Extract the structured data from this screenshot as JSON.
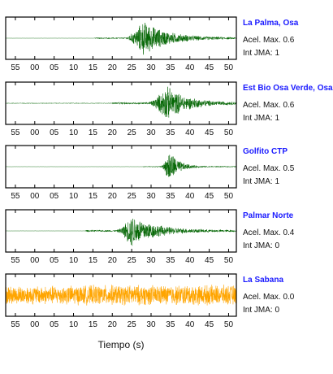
{
  "chart_data": {
    "type": "line",
    "xlabel": "Tiempo (s)",
    "x_ticks": [
      "55",
      "00",
      "05",
      "10",
      "15",
      "20",
      "25",
      "30",
      "35",
      "40",
      "45",
      "50"
    ],
    "x_tick_seconds": [
      -5,
      0,
      5,
      10,
      15,
      20,
      25,
      30,
      35,
      40,
      45,
      50
    ],
    "xlim": [
      -7.5,
      52
    ],
    "grid": false,
    "legend": "none",
    "panels": [
      {
        "station": "La Palma, Osa",
        "acel_label": "Acel. Max. 0.6",
        "jma_label": "Int JMA: 1",
        "color": "#006400",
        "noise_start": 15.5,
        "onset": 23,
        "peak": 28,
        "peak_amplitude": 0.95,
        "decay": 6,
        "noise_level": 0.04,
        "pre_noise": 0.005
      },
      {
        "station": "Est Bio Osa Verde, Osa",
        "acel_label": "Acel. Max. 0.6",
        "jma_label": "Int JMA: 1",
        "color": "#006400",
        "noise_start": 20,
        "onset": 29,
        "peak": 34,
        "peak_amplitude": 0.95,
        "decay": 5,
        "noise_level": 0.06,
        "pre_noise": 0.02
      },
      {
        "station": "Golfito CTP",
        "acel_label": "Acel. Max. 0.5",
        "jma_label": "Int JMA: 1",
        "color": "#006400",
        "noise_start": 28,
        "onset": 32.5,
        "peak": 34.8,
        "peak_amplitude": 0.95,
        "decay": 2.2,
        "noise_level": 0.03,
        "pre_noise": 0.005
      },
      {
        "station": "Palmar Norte",
        "acel_label": "Acel. Max. 0.4",
        "jma_label": "Int JMA: 0",
        "color": "#006400",
        "noise_start": 13,
        "onset": 21,
        "peak": 25,
        "peak_amplitude": 0.9,
        "decay": 6,
        "noise_level": 0.05,
        "pre_noise": 0.005
      },
      {
        "station": "La Sabana",
        "acel_label": "Acel. Max. 0.0",
        "jma_label": "Int JMA: 0",
        "color": "#ffa500",
        "noise_start": -7.5,
        "onset": -7.5,
        "peak": 20,
        "peak_amplitude": 0.55,
        "decay": 200,
        "noise_level": 0.5,
        "pre_noise": 0.5
      }
    ]
  }
}
